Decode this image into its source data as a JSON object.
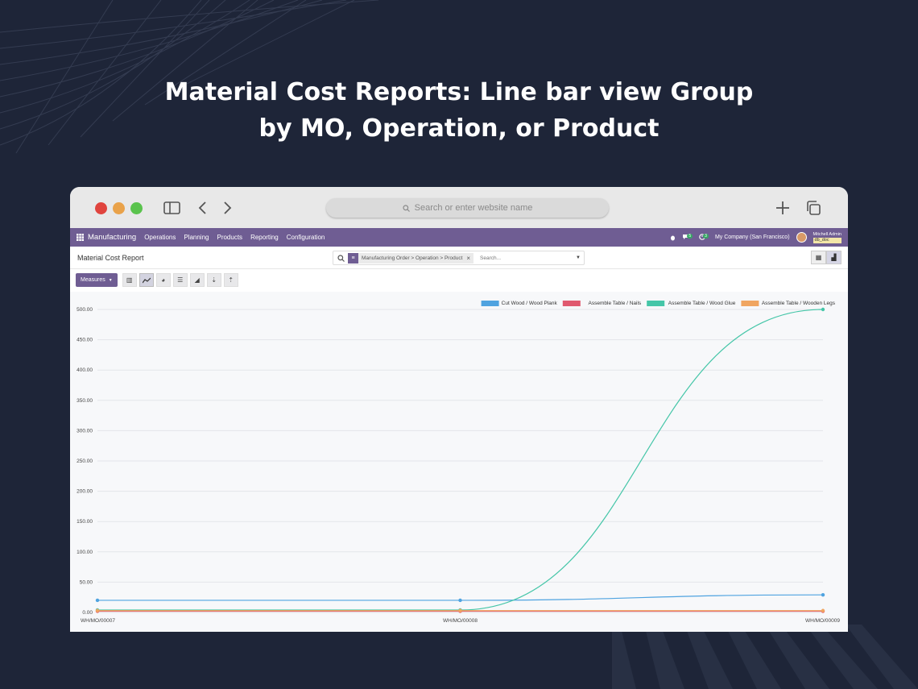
{
  "headline": {
    "line1": "Material Cost Reports: Line bar view Group",
    "line2": "by MO, Operation, or Product"
  },
  "browser": {
    "url_placeholder": "Search or enter website name"
  },
  "navbar": {
    "app": "Manufacturing",
    "menus": [
      "Operations",
      "Planning",
      "Products",
      "Reporting",
      "Configuration"
    ],
    "messages_badge": "5",
    "activity_badge": "3",
    "company": "My Company (San Francisco)",
    "user": "Mitchell Admin",
    "db": "db_doc"
  },
  "control_panel": {
    "title": "Material Cost Report",
    "facet": "Manufacturing Order > Operation > Product",
    "search_placeholder": "Search...",
    "measures_label": "Measures"
  },
  "chart_data": {
    "type": "line",
    "categories": [
      "WH/MO/00007",
      "WH/MO/00008",
      "WH/MO/00009"
    ],
    "ylim": [
      0,
      500
    ],
    "yticks": [
      "0.00",
      "50.00",
      "100.00",
      "150.00",
      "200.00",
      "250.00",
      "300.00",
      "350.00",
      "400.00",
      "450.00",
      "500.00"
    ],
    "series": [
      {
        "name": "Cut Wood / Wood Plank",
        "color": "#4fa3e0",
        "values": [
          20,
          20,
          29
        ]
      },
      {
        "name": "Assemble Table / Nails",
        "color": "#e0596f",
        "values": [
          2,
          2,
          2
        ]
      },
      {
        "name": "Assemble Table / Wood Glue",
        "color": "#45c6a8",
        "values": [
          4,
          4,
          500
        ]
      },
      {
        "name": "Assemble Table / Wooden Legs",
        "color": "#f0a560",
        "values": [
          3,
          3,
          3
        ]
      }
    ]
  }
}
